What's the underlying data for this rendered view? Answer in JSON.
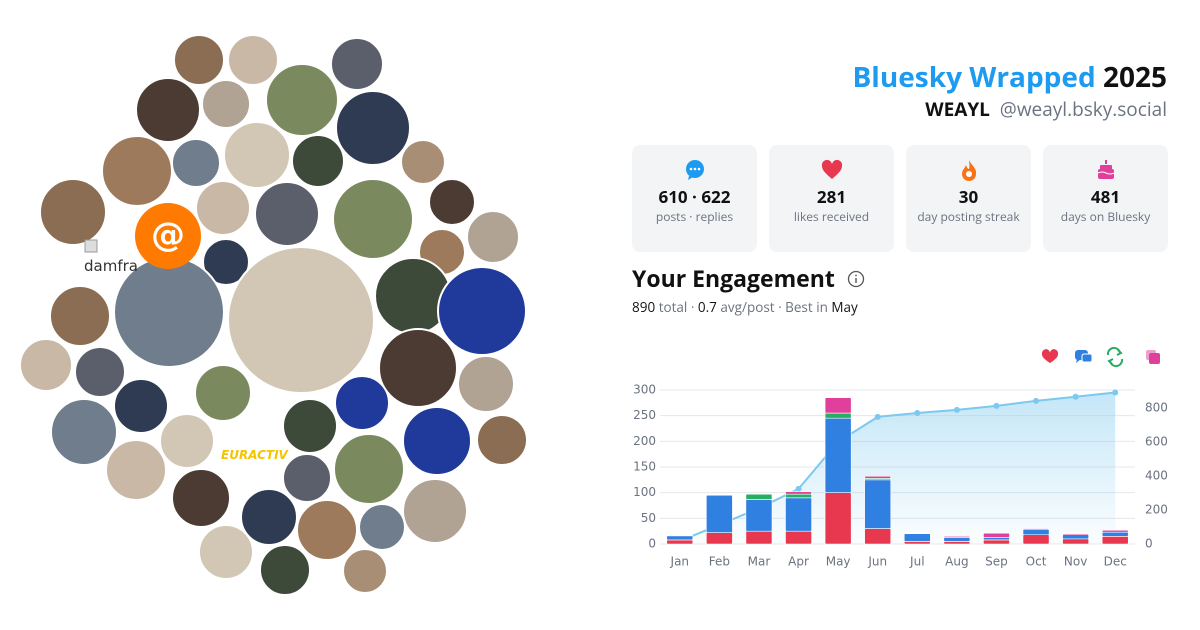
{
  "avatars": {
    "at_symbol": "@",
    "placeholder_label": "damfra",
    "logo_text": "EURACTIV"
  },
  "header": {
    "title": "Bluesky Wrapped",
    "year": "2025",
    "name": "WEAYL",
    "handle": "@weayl.bsky.social"
  },
  "stats": [
    {
      "value": "610 · 622",
      "label": "posts · replies"
    },
    {
      "value": "281",
      "label": "likes received"
    },
    {
      "value": "30",
      "label": "day posting streak"
    },
    {
      "value": "481",
      "label": "days on Bluesky"
    }
  ],
  "engagement": {
    "heading": "Your Engagement",
    "total": "890",
    "total_label": "total ·",
    "avg": "0.7",
    "avg_label": "avg/post · Best in",
    "best": "May"
  },
  "chart_data": {
    "type": "bar",
    "stacked": true,
    "categories": [
      "Jan",
      "Feb",
      "Mar",
      "Apr",
      "May",
      "Jun",
      "Jul",
      "Aug",
      "Sep",
      "Oct",
      "Nov",
      "Dec"
    ],
    "series": [
      {
        "color": "#e8384f",
        "values": [
          8,
          22,
          25,
          25,
          100,
          30,
          5,
          5,
          8,
          18,
          10,
          15
        ]
      },
      {
        "color": "#2f80e0",
        "values": [
          8,
          72,
          62,
          65,
          145,
          95,
          15,
          8,
          5,
          10,
          8,
          8
        ]
      },
      {
        "color": "#27ae60",
        "values": [
          0,
          2,
          10,
          7,
          10,
          3,
          0,
          0,
          0,
          0,
          0,
          0
        ]
      },
      {
        "color": "#e0409c",
        "values": [
          1,
          0,
          1,
          5,
          30,
          4,
          1,
          2,
          8,
          2,
          2,
          4
        ]
      },
      {
        "type": "line",
        "axis": "y2",
        "color": "#7cc8ee",
        "values": [
          17,
          113,
          210,
          324,
          600,
          747,
          770,
          788,
          812,
          841,
          865,
          890
        ]
      }
    ],
    "ylim": [
      0,
      300
    ],
    "yticks": [
      0,
      50,
      100,
      150,
      200,
      250,
      300
    ],
    "y2lim": [
      0,
      905
    ],
    "y2ticks": [
      0,
      200,
      400,
      600,
      800
    ],
    "grid": true
  }
}
